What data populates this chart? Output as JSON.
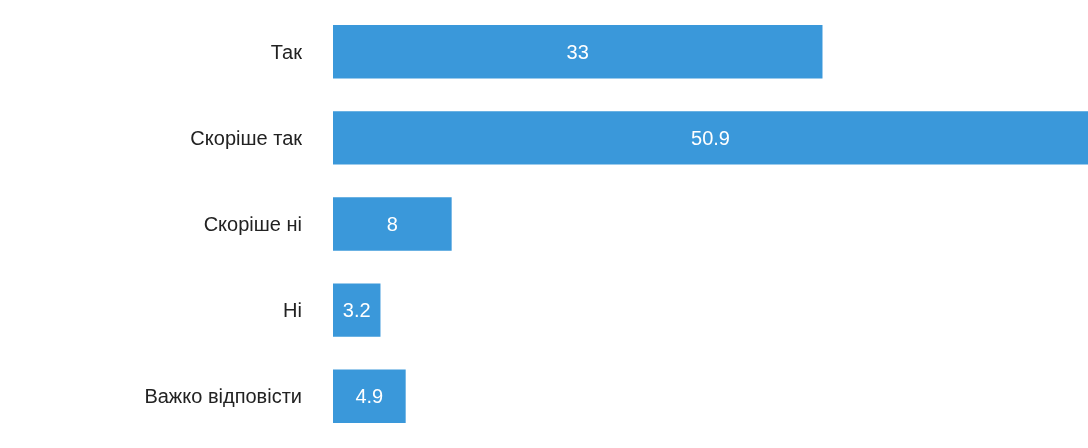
{
  "chart_data": {
    "type": "bar",
    "orientation": "horizontal",
    "categories": [
      "Так",
      "Скоріше так",
      "Скоріше ні",
      "Ні",
      "Важко відповісти"
    ],
    "values": [
      33,
      50.9,
      8,
      3.2,
      4.9
    ],
    "color": "#3a98da",
    "data_labels": true
  }
}
